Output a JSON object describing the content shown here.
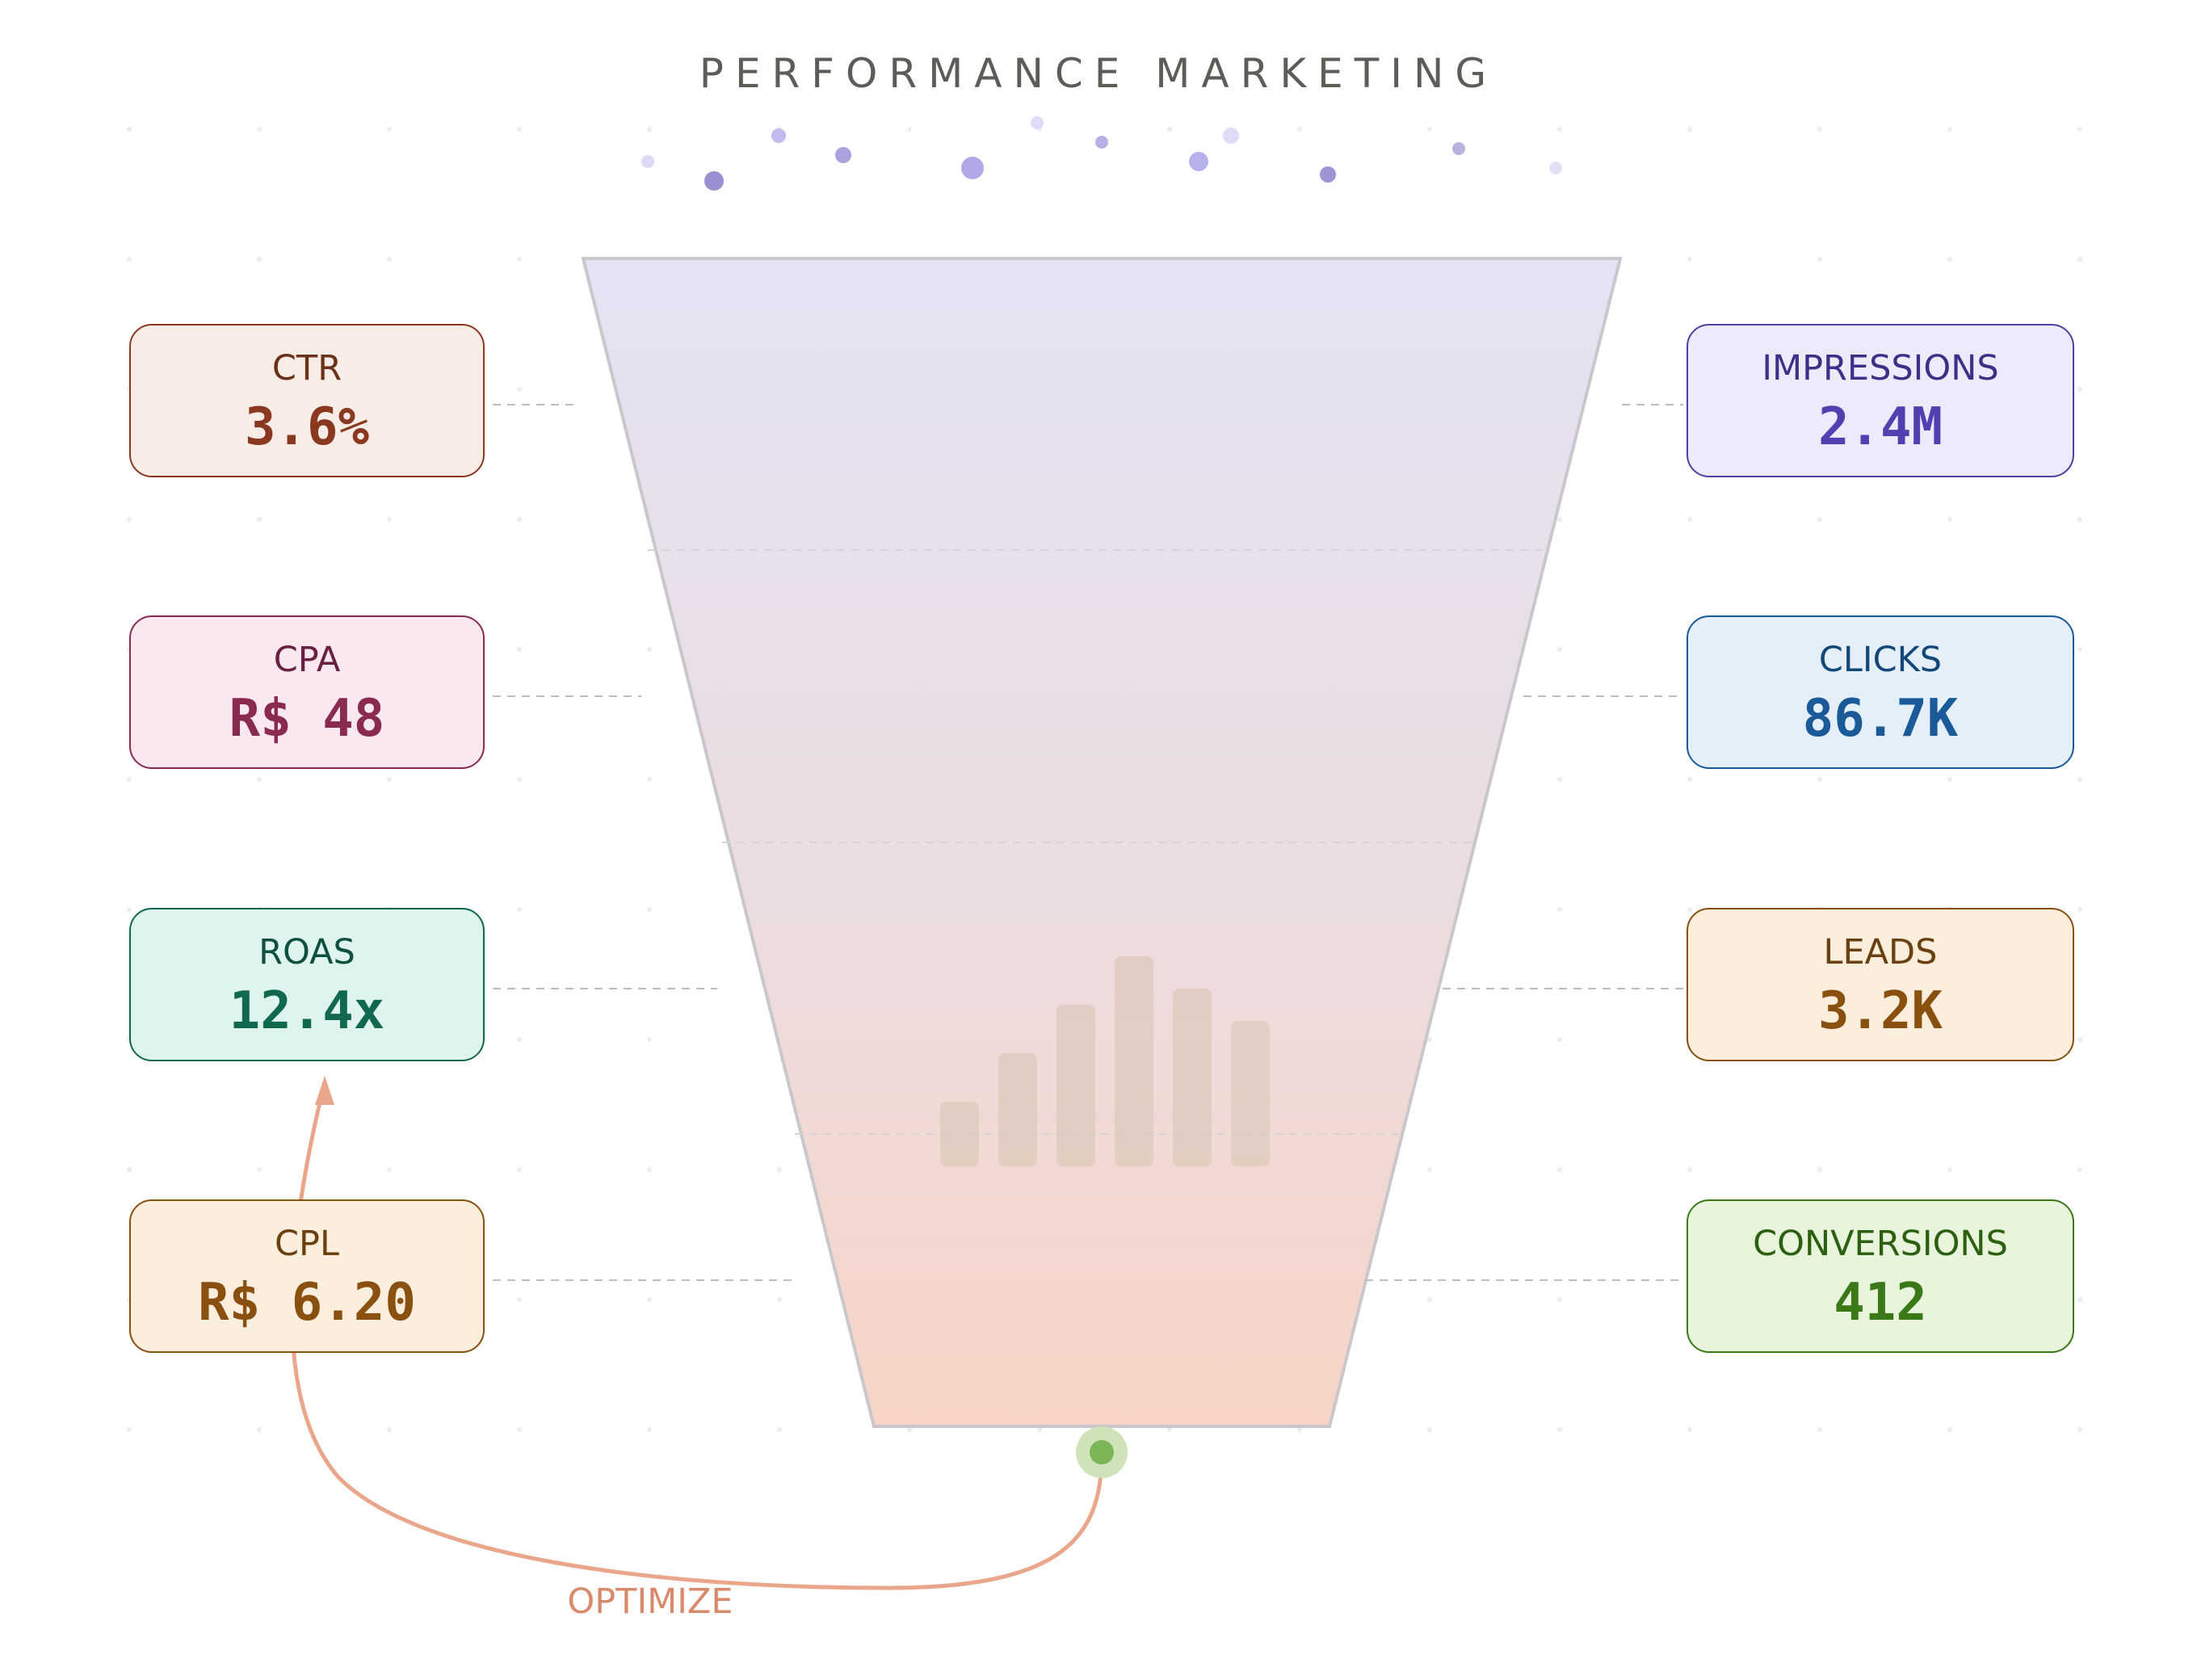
{
  "title": "PERFORMANCE MARKETING",
  "funnel_metrics": [
    {
      "label": "IMPRESSIONS",
      "value": "2.4M"
    },
    {
      "label": "CLICKS",
      "value": "86.7K"
    },
    {
      "label": "LEADS",
      "value": "3.2K"
    },
    {
      "label": "CONVERSIONS",
      "value": "412"
    }
  ],
  "kpis": [
    {
      "label": "CTR",
      "value": "3.6%"
    },
    {
      "label": "CPA",
      "value": "R$ 48"
    },
    {
      "label": "ROAS",
      "value": "12.4x"
    },
    {
      "label": "CPL",
      "value": "R$ 6.20"
    }
  ],
  "feedback_loop_label": "OPTIMIZE",
  "colors": {
    "impressions": "#5040b0",
    "clicks": "#1a5a98",
    "leads": "#8a5010",
    "conversions": "#3a7818",
    "ctr": "#8a3820",
    "cpa": "#8a2a50",
    "roas": "#106850",
    "cpl": "#8a5010",
    "optimize_arrow": "#eaa68a",
    "funnel_top": "#e4e2f4",
    "funnel_bottom": "#f7d4c6"
  },
  "icons": [
    "particle-dots",
    "bar-chart-icon",
    "output-dot-icon",
    "arrow-head-icon"
  ]
}
